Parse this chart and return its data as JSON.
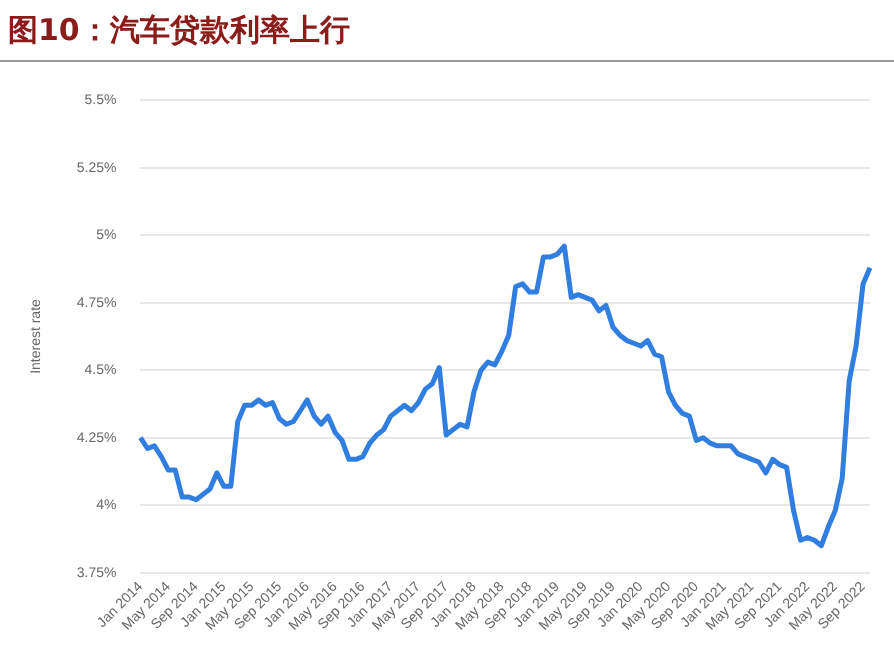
{
  "chart_data": {
    "type": "line",
    "title": "图10：汽车贷款利率上行",
    "ylabel": "Interest rate",
    "categories": [
      "Jan 2014",
      null,
      null,
      null,
      "May 2014",
      null,
      null,
      null,
      "Sep 2014",
      null,
      null,
      null,
      "Jan 2015",
      null,
      null,
      null,
      "May 2015",
      null,
      null,
      null,
      "Sep 2015",
      null,
      null,
      null,
      "Jan 2016",
      null,
      null,
      null,
      "May 2016",
      null,
      null,
      null,
      "Sep 2016",
      null,
      null,
      null,
      "Jan 2017",
      null,
      null,
      null,
      "May 2017",
      null,
      null,
      null,
      "Sep 2017",
      null,
      null,
      null,
      "Jan 2018",
      null,
      null,
      null,
      "May 2018",
      null,
      null,
      null,
      "Sep 2018",
      null,
      null,
      null,
      "Jan 2019",
      null,
      null,
      null,
      "May 2019",
      null,
      null,
      null,
      "Sep 2019",
      null,
      null,
      null,
      "Jan 2020",
      null,
      null,
      null,
      "May 2020",
      null,
      null,
      null,
      "Sep 2020",
      null,
      null,
      null,
      "Jan 2021",
      null,
      null,
      null,
      "May 2021",
      null,
      null,
      null,
      "Sep 2021",
      null,
      null,
      null,
      "Jan 2022",
      null,
      null,
      null,
      "May 2022",
      null,
      null,
      null,
      "Sep 2022",
      null
    ],
    "series": [
      {
        "color": "#2f7ee0",
        "values": [
          4.25,
          4.21,
          4.22,
          4.18,
          4.13,
          4.13,
          4.03,
          4.03,
          4.02,
          4.04,
          4.06,
          4.12,
          4.07,
          4.07,
          4.31,
          4.37,
          4.37,
          4.39,
          4.37,
          4.38,
          4.32,
          4.3,
          4.31,
          4.35,
          4.39,
          4.33,
          4.3,
          4.33,
          4.27,
          4.24,
          4.17,
          4.17,
          4.18,
          4.23,
          4.26,
          4.28,
          4.33,
          4.35,
          4.37,
          4.35,
          4.38,
          4.43,
          4.45,
          4.51,
          4.26,
          4.28,
          4.3,
          4.29,
          4.42,
          4.5,
          4.53,
          4.52,
          4.57,
          4.63,
          4.81,
          4.82,
          4.79,
          4.79,
          4.92,
          4.92,
          4.93,
          4.96,
          4.77,
          4.78,
          4.77,
          4.76,
          4.72,
          4.74,
          4.66,
          4.63,
          4.61,
          4.6,
          4.59,
          4.61,
          4.56,
          4.55,
          4.42,
          4.37,
          4.34,
          4.33,
          4.24,
          4.25,
          4.23,
          4.22,
          4.22,
          4.22,
          4.19,
          4.18,
          4.17,
          4.16,
          4.12,
          4.17,
          4.15,
          4.14,
          3.98,
          3.87,
          3.88,
          3.87,
          3.85,
          3.92,
          3.98,
          4.1,
          4.46,
          4.59,
          4.82,
          4.88
        ]
      }
    ],
    "ylim": [
      3.75,
      5.5
    ],
    "yticks": [
      {
        "value": 3.75,
        "label": "3.75%"
      },
      {
        "value": 4,
        "label": "4%"
      },
      {
        "value": 4.25,
        "label": "4.25%"
      },
      {
        "value": 4.5,
        "label": "4.5%"
      },
      {
        "value": 4.75,
        "label": "4.75%"
      },
      {
        "value": 5,
        "label": "5%"
      },
      {
        "value": 5.25,
        "label": "5.25%"
      },
      {
        "value": 5.5,
        "label": "5.5%"
      }
    ],
    "grid": "y",
    "marker": "none",
    "line_style": "solid"
  }
}
